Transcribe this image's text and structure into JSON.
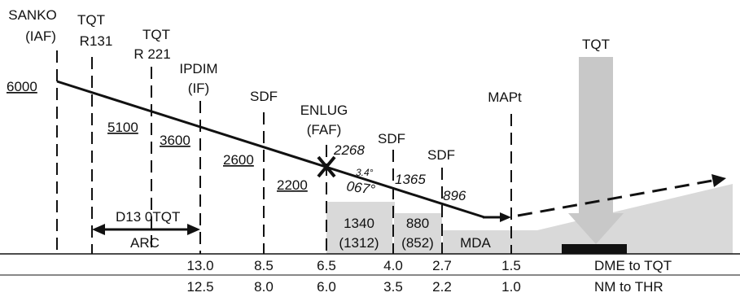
{
  "fixes": {
    "sanko": {
      "name": "SANKO",
      "role": "(IAF)"
    },
    "tqt_r131": {
      "name": "TQT",
      "radial": "R131"
    },
    "tqt_r221": {
      "name": "TQT",
      "radial": "R 221"
    },
    "ipdim": {
      "name": "IPDIM",
      "role": "(IF)"
    },
    "sdf1": {
      "name": "SDF"
    },
    "enlug": {
      "name": "ENLUG",
      "role": "(FAF)"
    },
    "sdf2": {
      "name": "SDF"
    },
    "sdf3": {
      "name": "SDF"
    },
    "mapt": {
      "name": "MAPt"
    },
    "tqt_station": {
      "name": "TQT"
    }
  },
  "altitudes": {
    "alt_6000": "6000",
    "alt_5100": "5100",
    "alt_3600": "3600",
    "alt_2600": "2600",
    "alt_2200": "2200",
    "alt_2268": "2268",
    "alt_1365": "1365",
    "alt_896": "896"
  },
  "descent_angle": "3.4°",
  "track": "067°",
  "arc_label": {
    "dme": "D13 0TQT",
    "arc": "ARC"
  },
  "obstacle_boxes": {
    "box1": {
      "alt": "1340",
      "height": "(1312)"
    },
    "box2": {
      "alt": "880",
      "height": "(852)"
    },
    "mda": "MDA"
  },
  "table": {
    "dme_row_label": "DME to TQT",
    "thr_row_label": "NM to THR",
    "dme_values": [
      "13.0",
      "8.5",
      "6.5",
      "4.0",
      "2.7",
      "1.5"
    ],
    "thr_values": [
      "12.5",
      "8.0",
      "6.0",
      "3.5",
      "2.2",
      "1.0"
    ]
  }
}
